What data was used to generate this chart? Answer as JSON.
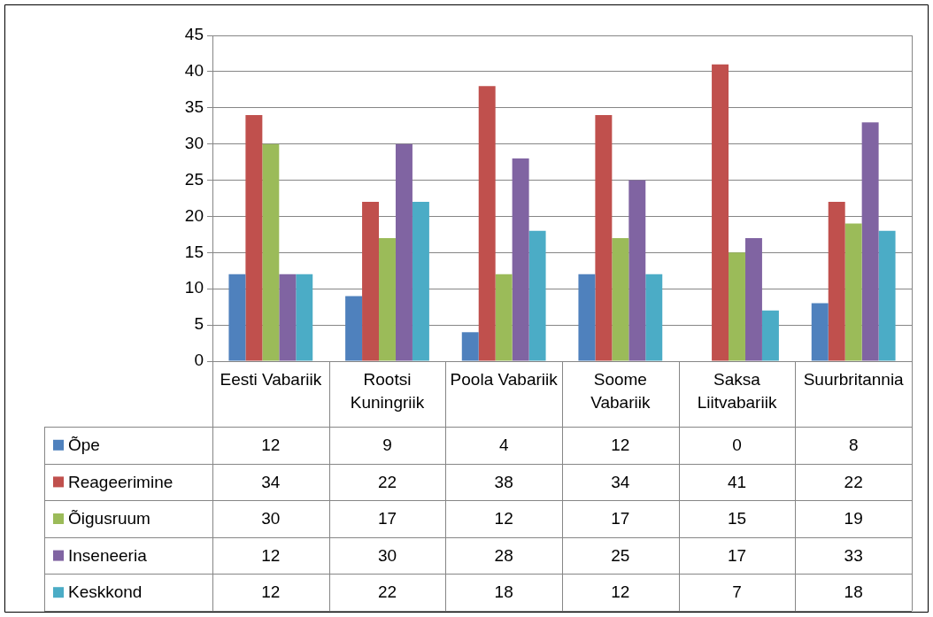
{
  "chart_data": {
    "type": "bar",
    "categories": [
      "Eesti Vabariik",
      "Rootsi Kuningriik",
      "Poola Vabariik",
      "Soome Vabariik",
      "Saksa Liitvabariik",
      "Suurbritannia"
    ],
    "series": [
      {
        "name": "Õpe",
        "color": "#4f81bd",
        "values": [
          12,
          9,
          4,
          12,
          0,
          8
        ]
      },
      {
        "name": "Reageerimine",
        "color": "#c0504d",
        "values": [
          34,
          22,
          38,
          34,
          41,
          22
        ]
      },
      {
        "name": "Õigusruum",
        "color": "#9bbb59",
        "values": [
          30,
          17,
          12,
          17,
          15,
          19
        ]
      },
      {
        "name": "Inseneeria",
        "color": "#8064a2",
        "values": [
          12,
          30,
          28,
          25,
          17,
          33
        ]
      },
      {
        "name": "Keskkond",
        "color": "#4bacc6",
        "values": [
          12,
          22,
          18,
          12,
          7,
          18
        ]
      }
    ],
    "ylim": [
      0,
      45
    ],
    "yticks": [
      0,
      5,
      10,
      15,
      20,
      25,
      30,
      35,
      40,
      45
    ],
    "grid": "y",
    "legend": "bottom",
    "data_labels": true
  }
}
